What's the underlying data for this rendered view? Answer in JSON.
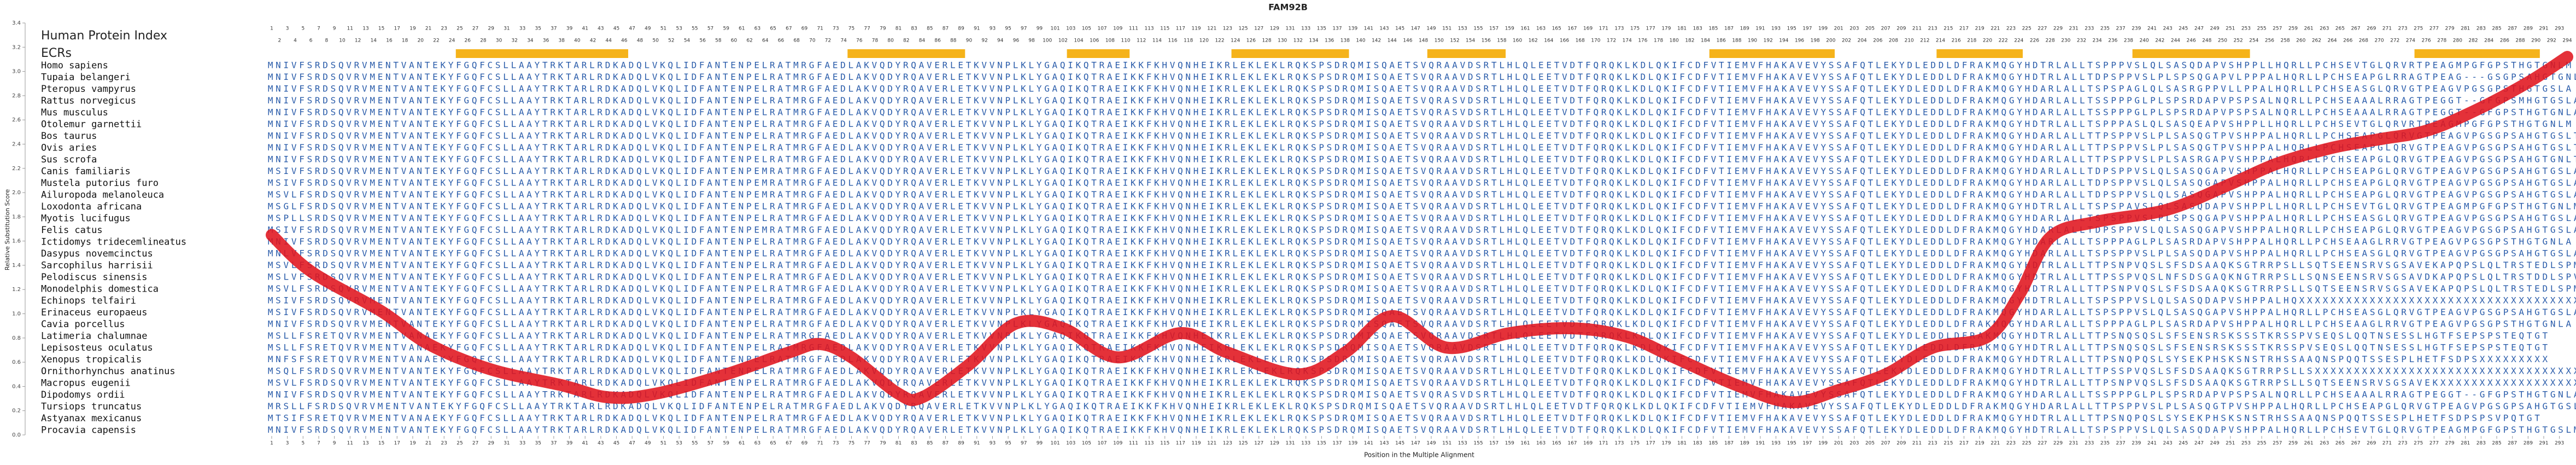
{
  "chart_data": {
    "type": "line",
    "title": "FAM92B",
    "x_label": "Position in the Multiple Alignment",
    "y_label": "Relative Substitution Score",
    "index_label": "Human Protein Index",
    "ecr_label": "ECRs",
    "ecrs": [
      [
        25,
        46
      ],
      [
        75,
        89
      ],
      [
        103,
        110
      ],
      [
        124,
        138
      ],
      [
        149,
        158
      ],
      [
        185,
        200
      ],
      [
        214,
        224
      ],
      [
        239,
        253
      ],
      [
        275,
        290
      ]
    ],
    "ecr_color": "#f5b31a",
    "xlim": [
      1,
      294
    ],
    "xticks": [
      1,
      2,
      3,
      4,
      5,
      6,
      7,
      8,
      9,
      10,
      11,
      12,
      13,
      14,
      15,
      16,
      17,
      18,
      19,
      20,
      21,
      22,
      23,
      24,
      25,
      26,
      27,
      28,
      29,
      30,
      31,
      32,
      33,
      34,
      35,
      36,
      37,
      38,
      39,
      40,
      41,
      42,
      43,
      44,
      45,
      46,
      47,
      48,
      49,
      50,
      51,
      52,
      53,
      54,
      55,
      56,
      57,
      58,
      59,
      60,
      61,
      62,
      63,
      64,
      65,
      66,
      67,
      68,
      69,
      70,
      71,
      72,
      73,
      74,
      75,
      76,
      77,
      78,
      79,
      80,
      81,
      82,
      83,
      84,
      85,
      86,
      87,
      88,
      89,
      90,
      91,
      92,
      93,
      94,
      95,
      96,
      97,
      98,
      99,
      100,
      101,
      102,
      103,
      104,
      105,
      106,
      107,
      108,
      109,
      110,
      111,
      112,
      113,
      114,
      115,
      116,
      117,
      118,
      119,
      120,
      121,
      122,
      123,
      124,
      125,
      126,
      127,
      128,
      129,
      130,
      131,
      132,
      133,
      134,
      135,
      136,
      137,
      138,
      139,
      140,
      141,
      142,
      143,
      144,
      145,
      146,
      147,
      148,
      149,
      150,
      151,
      152,
      153,
      154,
      155,
      156,
      157,
      158,
      159,
      160,
      161,
      162,
      163,
      164,
      165,
      166,
      167,
      168,
      169,
      170,
      171,
      172,
      173,
      174,
      175,
      176,
      177,
      178,
      179,
      180,
      181,
      182,
      183,
      184,
      185,
      186,
      187,
      188,
      189,
      190,
      191,
      192,
      193,
      194,
      195,
      196,
      197,
      198,
      199,
      200,
      201,
      202,
      203,
      204,
      205,
      206,
      207,
      208,
      209,
      210,
      211,
      212,
      213,
      214,
      215,
      216,
      217,
      218,
      219,
      220,
      221,
      222,
      223,
      224,
      225,
      226,
      227,
      228,
      229,
      230,
      231,
      232,
      233,
      234,
      235,
      236,
      237,
      238,
      239,
      240,
      241,
      242,
      243,
      244,
      245,
      246,
      247,
      248,
      249,
      250,
      251,
      252,
      253,
      254,
      255,
      256,
      257,
      258,
      259,
      260,
      261,
      262,
      263,
      264,
      265,
      266,
      267,
      268,
      269,
      270,
      271,
      272,
      273,
      274,
      275,
      276,
      277,
      278,
      279,
      280,
      281,
      282,
      283,
      284,
      285,
      286,
      287,
      288,
      289,
      290,
      291,
      292,
      293,
      294
    ],
    "ylim": [
      0,
      3.4
    ],
    "yticks": [
      {
        "value": 0,
        "label": "0.0"
      },
      0.2,
      0.4,
      0.6,
      0.8,
      {
        "value": 1,
        "label": "1.0"
      },
      1.2,
      1.4,
      1.6,
      1.8,
      {
        "value": 2,
        "label": "2.0"
      },
      2.2,
      2.4,
      2.6,
      2.8,
      {
        "value": 3,
        "label": "3.0"
      },
      3.2,
      3.4
    ],
    "x": [
      1,
      6,
      15,
      21,
      29,
      38,
      44,
      50,
      59,
      67,
      71,
      75,
      81,
      84,
      90,
      96,
      102,
      109,
      117,
      123,
      132,
      138,
      144,
      151,
      159,
      167,
      174,
      180,
      188,
      195,
      201,
      207,
      213,
      220,
      224,
      228,
      234,
      243,
      251,
      257,
      264,
      270,
      276,
      282,
      289,
      294
    ],
    "values": [
      1.65,
      1.35,
      1.02,
      0.75,
      0.54,
      0.41,
      0.31,
      0.34,
      0.5,
      0.68,
      0.75,
      0.64,
      0.34,
      0.31,
      0.58,
      0.92,
      0.88,
      0.64,
      0.84,
      0.68,
      0.5,
      0.68,
      0.98,
      0.72,
      0.84,
      0.88,
      0.81,
      0.64,
      0.41,
      0.27,
      0.37,
      0.5,
      0.72,
      0.81,
      1.15,
      1.63,
      1.76,
      1.86,
      2.07,
      2.24,
      2.37,
      2.44,
      2.51,
      2.67,
      2.91,
      3.12
    ],
    "color": "#e0141e",
    "alignment": {
      "species": [
        "Homo sapiens",
        "Tupaia belangeri",
        "Pteropus vampyrus",
        "Rattus norvegicus",
        "Mus musculus",
        "Otolemur garnettii",
        "Bos taurus",
        "Ovis aries",
        "Sus scrofa",
        "Canis familiaris",
        "Mustela putorius furo",
        "Ailuropoda melanoleuca",
        "Loxodonta africana",
        "Myotis lucifugus",
        "Felis catus",
        "Ictidomys tridecemlineatus",
        "Dasypus novemcinctus",
        "Sarcophilus harrisii",
        "Pelodiscus sinensis",
        "Monodelphis domestica",
        "Echinops telfairi",
        "Erinaceus europaeus",
        "Cavia porcellus",
        "Latimeria chalumnae",
        "Lepisosteus oculatus",
        "Xenopus tropicalis",
        "Ornithorhynchus anatinus",
        "Macropus eugenii",
        "Dipodomys ordii",
        "Tursiops truncatus",
        "Astyanax mexicanus",
        "Procavia capensis"
      ],
      "sequences": [
        "MNIVFSRDSQVRVMENTVANTEKYFGQFCSLLAAYTRKTARLRDKADQLVKQLIDFANTENPELRATMRGFAEDLAKVQDYRQAVERLETKVVNPLKLYGAQIKQTRAEIKKFKHVQNHEIKRLEKLEKLRQKSPSDRQMISQAETSVQRAAVDSRTLHLQLEETVDTFQRQKLKDLQKIFCDFVTIEMVFHAKAVEVYSSAFQTLEKYDLEDDLDFRAKMQGYHDTRLALLTSPPPVSLQLSASQDAPVSHPPLLHQRLLPCHSEVTGLQRVRTPEAGMPGFGPSTHGTGNLM",
        "MNIVFSRDSQVRVMENTVANTEKYFGQFCSLLAAYTRKTARLRDKADQLVKQLIDFANTENPELRATMRGFAEDLAKVQDYRQAVERLETKVVNPLKLYGAQIKQTRAEIKKFKHVQNHEIKRLEKLEKLRQKSPSDRQMISQAETSVQRAAVDSRTLHLQLEETVDTFQRQKLKDLQKIFCDFVTIEMVFHAKAVEVYSSAFQTLEKYDLEDDLDFRAKMQGYHDTRLALLTDPSPPVSLPLSPSQGAPVLPPPALHQRLLPCHSEAPGLRRAGTPEAG---GSGPSAHGTGNLT",
        "MNIVFSRDSQVRVMENTVANTEKYFGQFCSLLAAYTRKTARLRDKADQLVKQLIDFANTENPELRATMRGFAEDLAKVQDYRQAVERLETKVVNPLKLYGAQIKQTRAEIKKFKHVQNHEIKRLEKLEKLRQKSPSDRQMISQAETSVQRAAVDSRTLHLQLEETVDTFQRQKLKDLQKIFCDFVTIEMVFHAKAVEVYSSAFQTLEKYDLEDDLDFRAKMQGYHDARLALLTSPSPAGLQLSASRGPPVLLPPALHQRLLPCHSEASGLQRVGTPEAGVPGSGPSTHGTGSLA",
        "MNIVFSRDSQVRVMENTVANTEKYFGQFCSLLAAYTRKTARLRDKADQLVKQLIDFANTENPELRATMRGFAEDLAKVQDYRQAVERLETKVVNPLKLYGAQIKQTRAEIKKFKHVQNHEIKRLEKLEKLRQKSPSDRQMISQAETSVQRASVDSRTLHLQLEETVDTFQRQKLKDLQKIFCDFVTIEMVFHAKAVEVYSSAFQTLEKYDLEDDLDFRAKMQGYHDARLALLTSSPPPGLPLSPSRDAPVPSPSALNQRLLPCHSEAAALRRAGTPEGGT--GFGPSMHGTGSLA",
        "MNIVFSRDSQVRVMENTVANTEKYFGQFCSLLAAYTRKTARLRDKADQLVKQLIDFANTENPELRATMRGFAEDLAKVQDYRQAVERLETKVVNPLKLYGAQIKQTRAEIKKFKHVQNHEIKRLEKLEKLRQKSPSDRQMISQAETSVQRASVDSRTLHLQLEETVDTFQRQKLKDLQKIFCDFVTIEMVFHAKAVEVYSSAFQTLEKYDLEDDLDFRAKMQGYHDARLALLTSSPPPGLPLSPSRDAPVPSPSALNQRLLPCHSEAAALRRAGTPEGGT--GFGPSTHGTGNLA",
        "MNIVFSRDSQVRVMENTVANTEKYFGQFCSLLAAYTRKTARLRDKADQLVKQLIDFANTENPELRATMRGFAEDLAKVQDYRQAVERLETKVVNPLKLYGAQIKQTRAEIKKFKHVQNHEIKRLEKLEKLRQKSPSDRQMISQAETSVQRAAVDSRTLHLQLEETVDTFQRQKLKDLQKIFCDFVTIEMVFHAKAVEVYSSAFQTLEKYDLEDDLDFRAKMQGYHDTRLALLTSPPPASLQLSASQEAPVSHPPLLHQRLLPCHSEVTGLQRVRTPEAGMPGFGPSTHGTGNLM",
        "MNIVFSRDSQVRVMENTVANTEKYFGQFCSLLAAYTRKTARLRDKADQLVKQLIDFANTENPELRATMRGFAEDLAKVQDYRQAVERLETKVVNPLKLYGAQIKQTRAEIKKFKHVQNHEIKRLEKLEKLRQKSPSDRQMISQAETSVQRAAVDSRTLHLQLEETVDTFQRQKLKDLQKIFCDFVTIEMVFHAKAVEVYSSAFQTLEKYDLEDDLDFRAKMQGYHDARLALLTTPSPPVSLPLSASQGTPVSHPPALHQRLLPCHSEAPGLQRVGTPEAGVPGSGPSAHGTGSLT",
        "MNIVFSRDSQVRVMENTVANTEKYFGQFCSLLAAYTRKTARLRDKADQLVKQLIDFANTENPELRATMRGFAEDLAKVQDYRQAVERLETKVVNPLKLYGAQIKQTRAEIKKFKHVQNHEIKRLEKLEKLRQKSPSDRQMISQAETSVQRAAVDSRTLHLQLEETVDTFQRQKLKDLQKIFCDFVTIEMVFHAKAVEVYSSAFQTLEKYDLEDDLDFRAKMQGYHDARLALLTTPSPPVSLPLSASQGTPVSHPPALHQRLLPCHSEAPGLQRVGTPEAGVPGSGPSAHGTGSLT",
        "MNIVFSRDSQVRVMENTVANTEKYFGQFCSLLAAYTRKTARLRDKADQLVKQLIDFANTENPELRATMRGFAEDLAKVQDYRQAVERLETKVVNPLKLYGAQIKQTRAEIKKFKHVQNHEIKRLEKLEKLRQKSPSDRQMISQAETSVQRAAVDSRTLHLQLEETVDTFQRQKLKDLQKIFCDFVTIEMVFHAKAVEVYSSAFQTLEKYDLEDDLDFRAKMQGYHDARLALLTTPSPPVSLPLSASRGAPVSHPPALHQRLLPCHSEAPGLQRVGTPEAGVPGSGPSAHGTGNLT",
        "MSIVFSRDSQVRVMENTVANTEKYFGQFCSLLAAYTRKTARLRDKADQLVKQLIDFANTENPEMRATMRGFAEDLAKVQDYRQAVERLETKVVNPLKLYGAQIKQTRAEIKKFKHVQNHEIKRLEKLEKLRQKSPSDRQMISQAETSVQRAAVDSRTLHLQLEETVDTFQRQKLKDLQKIFCDFVTIEMVFHAKAVEVYSSAFQTLEKYDLEDDLDFRAKMQGYHDARLALLTDPSPPVSLQLSASQGAPVSHPPALHQRLLPCHSEAPGLQRVGTPEAGVPGSGPSAHGTGSLA",
        "MSIVFSRDSQVRVMENTVANTEKYFGQFCSLLAAYTRKTARLRDKADQLVKQLIDFANTENPEMRATMRGFAEDLAKVQDYRQAVERLETKVVNPLKLYGAQIKQTRAEIKKFKHVQNHEIKRLEKLEKLRQKSPSDRQMISQAETSVQRAAVDSRTLHLQLEETVDTFQRQKLKDLQKIFCDFVTIEMVFHAKAVEVYSSAFQTLEKYDLEDDLDFRAKMQGYHDARLALLTDPSPPVSLQLSASQGAPVSHPPALHQRLLPCHSEAPGLQRVGTPEAGVPGSGPSAHGTGSLA",
        "MSVLFSRDSQVRVMENTVANTEKYFGQFCSLLAAYTRKTARLRDKADQLVKQLIDFANTENPEMRATMRGFAEDLAKVQDYRQAVERLETKVVNPLKLYGAQIKQTRAEIKKFKHVQNHEIKRLEKLEKLRQKSPSDRQMISQAETSVQRAAVDSRTLHLQLEETVDTFQRQKLKDLQKIFCDFVTIEMVFHAKAVEVYSSAFQTLEKYDLEDDLDFRAKMQGYHDARLALLTDPSPPVSLQLSASQGAPVSHPPALHQRLLPCHSEAPGLQRVGTPEAGVPGSGPSAHGTGSLA",
        "MSGLFSRDSQVRVMENTVANTEKYFGQFCSLLAAYTRKTARLRDKADQLVKQLIDFANTENPELRATMRGFAEDLAKVQDYRQAVERLETKVVNPLKLYGAQIKQTRAEIKKFKHVQNHEIKRLEKLEKLRQKSPSDRQMISQAETSVQRAAVDSRTLHLQLEETVDTFQRQKLKDLQKIFCDFVTIEMVFHAKAVEVYSSAFQTLEKYDLEDDLDFRAKMQGYHDTRLALLTSPSPAVSLQLSASQDAPVSHPPLLHQRLLPCHSEVTGLQRVGTPEAGMPGFGPSTHGTGNLM",
        "MSPLLSRDSQVRVMENTVANTEKYFGQFCSLLAAYTRKTARLRDKADQLVKQLIDFANTENPELRATMRGFAEDLAKVQDYRQAVERLETKVVNPLKLYGAQIKQTRAEIKKFKHVQNHEIKRLEKLEKLRQKSPSDRQMISQAETSVQRAAVDSRTLHLQLEETVDTFQRQKLKDLQKIFCDFVTIEMVFHAKAVEVYSSAFQTLEKYDLEDDLDFRAKMQGYHDARLALLTSPSPPVSLPLSPSQGAPVSHPPALHQRLLPCHSEASGLQRVGTPEAGVPGSGPSAHGTGSLA",
        "MSIVFSRDSQVRVMENTVANTEKYFGQFCSLLAAYTRKTARLRDKADQLVKQLIDFANTENPEMRATMRGFAEDLAKVQDYRQAVERLETKVVNPLKLYGAQIKQTRAEIKKFKHVQNHEIKRLEKLEKLRQKSPSDRQMISQAETSVQRAAVDSRTLHLQLEETVDTFQRQKLKDLQKIFCDFVTIEMVFHAKAVEVYSSAFQTLEKYDLEDDLDFRAKMQGYHDARLALLTDPSPPVSLQLSASQGAPVSHPPALHQRLLPCHSEAPGLQRVGTPEAGVPGSGPSAHGTGSLA",
        "MNIVFSRDSQVRVMENTVANTEKYFGQFCSLLAAYTRKTARLRDKADQLVKQLIDFANTENPELRATMRGFAEDLAKVQDYRQAVERLETKVVNPLKLYGAQIKQTRAEIKKFKHVQNHEIKRLEKLEKLRQKSPSDRQMISQAETSVQRAAVDSRTLHLQLEETVDTFQRQKLKDLQKIFCDFVTIEMVFHAKAVEVYSSAFQTLEKYDLEDDLDFRAKMQGYHDARLALLTSPPPAGLPLSASRDAPVSHPPALHQRLLPCHSEAAGLRRVGTPEAGVPGSGPSTHGTGNLA",
        "MNLVFSRDSQVRVMENTVANTEKYFGQFCSLLAAYTRKTARLRDKADQLVKQLIDFANTENPELRATMRGFAEDLAKVQDYRQAVERLETKVVNPLKLYGAQIKQTRAEIKKFKHVQNHEIKRLEKLEKLRQKSPSDRQMISQAETSVQRAAVDSRTLHLQLEETVDTFQRQKLKDLQKIFCDFVTIEMVFHAKAVEVYSSAFQTLEKYDLEDDLDFRAKMQGYHDARLALLTSPSPPVSLPLSASQDAPVSHPPALHQRLLPCHSEASGLQRVGTPEAGVPGSGPSAHGTGSLA",
        "MSVLFSRDSQVRVMENTVANTEKYFGQFCSLLAAYTRKTARLRDKADQLVKQLIDFANTENPELRATMRGFAEDLAKVQDYRQAVERLETKVVNPLKLYGAQIKQTRAEIKKFKHVQNHEIKRLEKLEKLRQKSPSDRQMISQAETSVQRAAVDSRTLHLQLEETVDTFQRQKLKDLQKIFCDFVTIEMVFHAKAVEVYSSAFQTLEKYDLEDDLDFRAKMQGYHDTRLALLTTPSNPVQSLSFSDSAAQKSGTRRPSLLSQTSEENSRVSGSAVEKAPQPSLQLTRSTEDLSPM",
        "MSLVFSRDSQVRVMENTVANTEKYFGQFCSLLAAYTRKTARLRDKADQLVKQLIDFANTENPELRATMRGFAEDLAKVQDYRQAVERLETKVVNPLKLYGAQIKQTRAEIKKFKHVQNHEIKRLEKLEKLRQKSPSDRQMISQAETSVQRAAVDSRTLHLQLEETVDTFQRQKLKDLQKIFCDFVTIEMVFHAKAVEVYSSAFQTLEKYDLEDDLDFRAKMQGYHDTRLALLTTPSSPVQSLNFSDSGAQKNGTRRPSLLSQNSEENSRVSGSAVDKAPQPSLQLTRSTDDLSPV",
        "MSVLFSRDSQVRVMENTVANTEKYFGQFCSLLAAYTRKTARLRDKADQLVKQLIDFANTENPELRATMRGFAEDLAKVQDYRQAVERLETKVVNPLKLYGAQIKQTRAEIKKFKHVQNHEIKRLEKLEKLRQKSPSDRQMISQAETSVQRAAVDSRTLHLQLEETVDTFQRQKLKDLQKIFCDFVTIEMVFHAKAVEVYSSAFQTLEKYDLEDDLDFRAKMQGYHDTRLALLTTPSNPVQSLSFSDSAAQKSGTRRPSLLSQTSEENSRVSGSAVEKAPQPSLQLTRSTEDLSPM",
        "MSIVFSRDSQVRVMENTVANTEKYFGQFCSLLAAYTRKTARLRDKADQLVKQLIDFANTENPELRATMRGFAEDLAKVQDYRQAVERLETKVVNPLKLYGAQIKQTRAEIKKFKHVQNHEIKRLEKLEKLRQKSPSDRQMISQAETSVQRAAVDSRTLHLQLEETVDTFQRQKLKDLQKIFCDFVTIEMVFHAKAVEVYSSAFQTLEKYDLEDDLDFRAKMQGYHDTRLALLTSPSPPVSLQLSASQDAPVSHPPALHQXXXXXXXXXXXXXXXXXXXXXXXXXXXXXXXXXXXXXXX",
        "MSIVFSRDSQVRVMENTVANTEKYFGQFCSLLAAYTRKTARLRDKADQLVKQLIDFANTENPELRATMRGFAEDLAKVQDYRQAVERLETKVVNPLKLYGAQIKQTRAEIKKFKHVQNHEIKRLEKLEKLRQKSPSDRQMISQAETSVQRAAVDSRTLHLQLEETVDTFQRQKLKDLQKIFCDFVTIEMVFHAKAVEVYSSAFQTLEKYDLEDDLDFRAKMQGYHDARLALLTSPSPPVSLQLSASQGAPVSHPPALHQRLLPCHSEASGLQRVGTPEAGVPGSGPSAHGTGSLA",
        "MNIVFSRDSQVRVMENTVANTEKYFGQFCSLLAAYTRKTARLRDKADQLVKQLIDFANTENPELRATMRGFAEDLAKVQDYRQAVERLETKVVNPLKLYGAQIKQTRAEIKKFKHVQNHEIKRLEKLEKLRQKSPSDRQMISQAETSVQRAAVDSRTLHLQLEETVDTFQRQKLKDLQKIFCDFVTIEMVFHAKAVEVYSSAFQTLEKYDLEDDLDFRAKMQGYHDARLALLTSPPPAGLPLSASRDAPVSHPPALHQRLLPCHSEAAGLRRVGTPEAGVPGSGPSTHGTGNLA",
        "MSLLFSRETQVRVMENTVANAEKYFGQFCSLLAAYTRKTARLRDKADQLVKQLIDFANTENPELRATMRGFAEDLAKVQDYRQAVERLETKVVNPLKLYGAQIKQTRAEIKKFKHVQNHEIKRLEKLEKLRQKSPSDRQMISQAETSVQRAAVDSRTLHLQLEETVDTFQRQKLKDLQKIFCDFVTIEMVFHAKAVEVYSSAFQTLEKYDLEDDLDFRAKMQGYHDTRLALLTTPSNQSQSLSFSENSRSKSSSTKRSSPVSEQSLQQTNSESSLHGTFSEPSPSTEQTGT",
        "MSLLFSRETQVRVMENTVANAEKYFGQFCSLLAAYTRKTARLRDKADQLVKQLIDFANTENPELRATMRGFAEDLAKVQDYRQAVERLETKVVNPLKLYGAQIKQTRAEIKKFKHVQNHEIKRLEKLEKLRQKSPSDRQMISQAETSVQRAAVDSRTLHLQLEETVDTFQRQKLKDLQKIFCDFVTIEMVFHAKAVEVYSSAFQTLEKYDLEDDLDFRAKMQGYHDTRLALLTTPSNQSQSLSFSENSRSKSSSTKRSSPVSEQSLQQTNSESSLHGTFSEPSPSTEQTGT",
        "MNFSFSRETQVRVMENTVANAEKYFGQFCSLLAAYTRKTARLRDKADQLVKQLIDFANTENPELRATMRGFAEDLAKVQDYRQAVERLETKVVNPLKLYGAQIKQTRAEIKKFKHVQNHEIKRLEKLEKLRQKSPSDRQMISQAETSVQRAAVDSRTLHLQLEETVDTFQRQKLKDLQKIFCDFVTIEMVFHAKAVEVYSSAFQTLEKYDLEDDLDFRAKMQGYHDTRLALLTTPSNQPQSLSYSEKPHSKSNSTRHSSAAQNSPQQTSSESPLHETFSDPSXXXXXXXXX",
        "MSQLFSRDSQVRVMENTVANTEKYFGQFCSLLAAYTRKTARLRDKADQLVKQLIDFANTENPELRATMRGFAEDLAKVQDYRQAVERLETKVVNPLKLYGAQIKQTRAEIKKFKHVQNHEIKRLEKLEKLRQKSPSDRQMISQAETSVQRAAVDSRTLHLQLEETVDTFQRQKLKDLQKIFCDFVTIEMVFHAKAVEVYSSAFQTLEKYDLEDDLDFRAKMQGYHDTRLALLTTPSSPVQSLSFSDSAAQKSGTRRPSLLSXXXXXXXXXXXXXXXXXXXXXXXXXXXXXXXXXXXX",
        "MSVLFSRDSQVRVMENTVANTEKYFGQFCSLLAAYTRKTARLRDKADQLVKQLIDFANTENPELRATMRGFAEDLAKVQDYRQAVERLETKVVNPLKLYGAQIKQTRAEIKKFKHVQNHEIKRLEKLEKLRQKSPSDRQMISQAETSVQRAAVDSRTLHLQLEETVDTFQRQKLKDLQKIFCDFVTIEMVFHAKAVEVYSSAFQTLEKYDLEDDLDFRAKMQGYHDTRLALLTTPSNPVQSLSFSDSAAQKSGTRRPSLLSQTSEENSRVSGSAVEKXXXXXXXXXXXXXXXXXXXX",
        "MNIVFSRDSQVRVMENTVANTEKYFGQFCSLLAAYTRKTARLRDKADQLVKQLIDFANTENPELRATMRGFAEDLAKVQDYRQAVERLETKVVNPLKLYGAQIKQTRAEIKKFKHVQNHEIKRLEKLEKLRQKSPSDRQMISQAETSVQRASVDSRTLHLQLEETVDTFQRQKLKDLQKIFCDFVTIEMVFHAKAVEVYSSAFQTLEKYDLEDDLDFRAKMQGYHDARLALLTSSPPPGLPLSPSRDAPVPSPSALNQRLLPCHSEAAALRRAGTPEGGT--GFGPSTHGTGNLA",
        "MRSLLFSRDSQVRVMENTVANTEKYFGQFCSLLAAYTRKTARLRDKADQLVKQLIDFANTENPELRATMRGFAEDLAKVQDYRQAVERLETKVVNPLKLYGAQIKQTRAEIKKFKHVQNHEIKRLEKLEKLRQKSPSDRQMISQAETSVQRAAVDSRTLHLQLEETVDTFQRQKLKDLQKIFCDFVTIEMVFHAKAVEVYSSAFQTLEKYDLEDDLDFRAKMQGYHDARLALLTTPSPPVSLPLSASQGTPVSHPPALHQRLLPCHSEAPGLQRVGTPEAGVPGSGPSAHGTGSL",
        "MTSIFSRETQVRVMENTVANAEKYFGQFCSLLAAYTRKTARLRDKADQLVKQLIDFANTENPELRATMRGFAEDLAKVQDYRQAVERLETKVVNPLKLYGAQIKQTRAEIKKFKHVQNHEIKRLEKLEKLRQKSPSDRQMISQAETSVQRAAVDSRTLHLQLEETVDTFQRQKLKDLQKIFCDFVTIEMVFHAKAVEVYSSAFQTLEKYDLEDDLDFRAKMQGYHDTRLALLTTPSNQPQSLSYSEKPHSKSNSTRHSSAAQNSPQQTSSESPLHETFSDPSPSVPQTGT",
        "MNIVFSRDSQVRVMENTVANTEKYFGQFCSLLAAYTRKTARLRDKADQLVKQLIDFANTENPELRATMRGFAEDLAKVQDYRQAVERLETKVVNPLKLYGAQIKQTRAEIKKFKHVQNHEIKRLEKLEKLRQKSPSDRQMISQAETSVQRAAVDSRTLHLQLEETVDTFQRQKLKDLQKIFCDFVTIEMVFHAKAVEVYSSAFQTLEKYDLEDDLDFRAKMQGYHDTRLALLTSPSPPVSLQLSASQDAPVSHPPALHQRLLPCHSEVTGLQRVGTPEAGMPGFGPSTHGTGSLM"
      ]
    }
  }
}
